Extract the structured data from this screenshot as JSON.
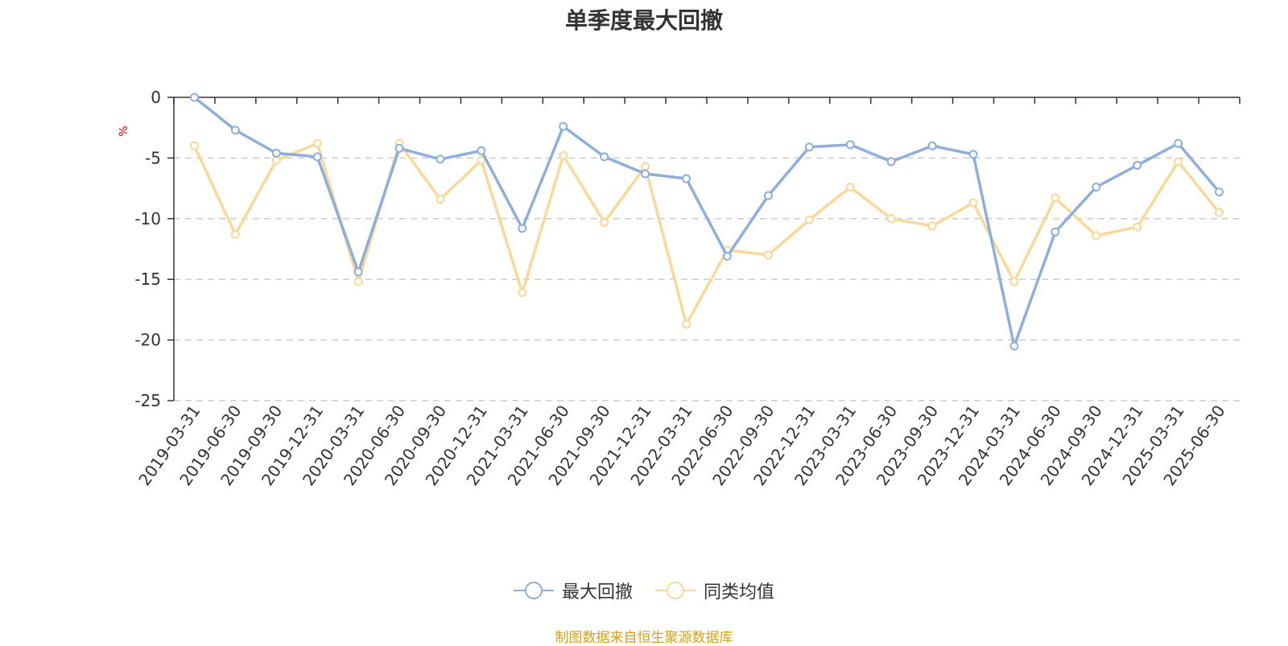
{
  "chart_data": {
    "type": "line",
    "title": "单季度最大回撤",
    "ylabel": "%",
    "ylim": [
      -25,
      0
    ],
    "yticks": [
      0,
      -5,
      -10,
      -15,
      -20,
      -25
    ],
    "grid": true,
    "legend_position": "bottom-center",
    "x": [
      "2019-03-31",
      "2019-06-30",
      "2019-09-30",
      "2019-12-31",
      "2020-03-31",
      "2020-06-30",
      "2020-09-30",
      "2020-12-31",
      "2021-03-31",
      "2021-06-30",
      "2021-09-30",
      "2021-12-31",
      "2022-03-31",
      "2022-06-30",
      "2022-09-30",
      "2022-12-31",
      "2023-03-31",
      "2023-06-30",
      "2023-09-30",
      "2023-12-31",
      "2024-03-31",
      "2024-06-30",
      "2024-09-30",
      "2024-12-31",
      "2025-03-31",
      "2025-06-30"
    ],
    "series": [
      {
        "name": "最大回撤",
        "color": "#8eaedb",
        "values": [
          0,
          -2.7,
          -4.6,
          -4.9,
          -14.4,
          -4.2,
          -5.1,
          -4.4,
          -10.8,
          -2.4,
          -4.9,
          -6.3,
          -6.7,
          -13.1,
          -8.1,
          -4.1,
          -3.9,
          -5.3,
          -4.0,
          -4.7,
          -20.5,
          -11.1,
          -7.4,
          -5.6,
          -3.8,
          -7.8
        ]
      },
      {
        "name": "同类均值",
        "color": "#f9d898",
        "values": [
          -4.0,
          -11.3,
          -5.2,
          -3.8,
          -15.2,
          -3.8,
          -8.4,
          -5.2,
          -16.1,
          -4.8,
          -10.3,
          -5.7,
          -18.7,
          -12.6,
          -13.0,
          -10.1,
          -7.4,
          -10.0,
          -10.6,
          -8.7,
          -15.2,
          -8.3,
          -11.4,
          -10.7,
          -5.3,
          -9.5
        ]
      }
    ]
  },
  "legend": {
    "items": [
      "最大回撤",
      "同类均值"
    ]
  },
  "source_note": "制图数据来自恒生聚源数据库"
}
